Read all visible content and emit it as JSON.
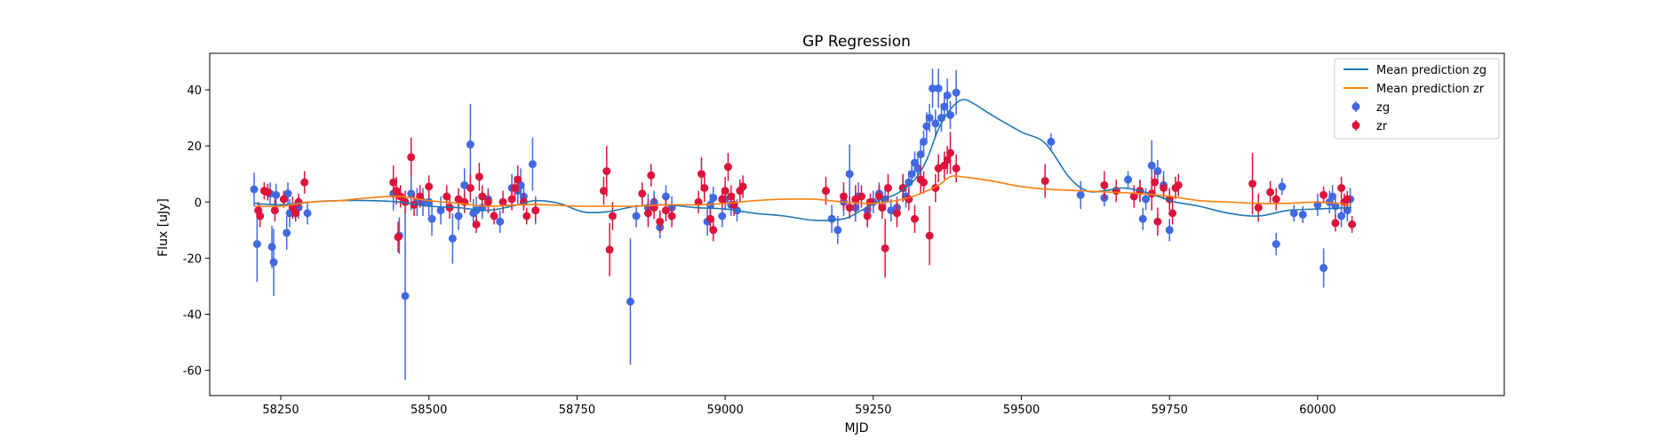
{
  "chart_data": {
    "type": "scatter",
    "title": "GP Regression",
    "xlabel": "MJD",
    "ylabel": "Flux [uJy]",
    "xlim": [
      58130,
      60315
    ],
    "ylim": [
      -69,
      53
    ],
    "x_ticks": [
      58250,
      58500,
      58750,
      59000,
      59250,
      59500,
      59750,
      60000
    ],
    "y_ticks": [
      -60,
      -40,
      -20,
      0,
      20,
      40
    ],
    "grid": false,
    "legend_position": "top-right",
    "colors": {
      "zg_line": "#1f77b4",
      "zr_line": "#ff7f0e",
      "zg_points": "#4169e1",
      "zr_points": "#dc143c"
    },
    "series": [
      {
        "name": "Mean prediction zg",
        "kind": "line",
        "color": "#1f77b4",
        "x": [
          58205,
          58250,
          58300,
          58350,
          58400,
          58450,
          58500,
          58550,
          58600,
          58650,
          58680,
          58720,
          58760,
          58800,
          58850,
          58900,
          58950,
          59000,
          59050,
          59100,
          59150,
          59200,
          59230,
          59260,
          59290,
          59320,
          59340,
          59360,
          59380,
          59400,
          59420,
          59450,
          59500,
          59540,
          59580,
          59610,
          59640,
          59670,
          59700,
          59730,
          59760,
          59800,
          59850,
          59900,
          59950,
          60000,
          60057
        ],
        "values": [
          -0.5,
          -1,
          0,
          0.5,
          0.5,
          0,
          -1.5,
          -2,
          -3,
          -1,
          0.5,
          -0.5,
          -3.5,
          -3.5,
          -1.5,
          -1,
          -2,
          -2.5,
          -4,
          -5,
          -6.5,
          -6,
          -3,
          0.5,
          3,
          8,
          15,
          26,
          33,
          36.5,
          35,
          31,
          25,
          21,
          9,
          4,
          4,
          5,
          4,
          2,
          0,
          -1.5,
          -4,
          -5,
          -3,
          -2.5,
          -2
        ]
      },
      {
        "name": "Mean prediction zr",
        "kind": "line",
        "color": "#ff7f0e",
        "x": [
          58205,
          58250,
          58300,
          58350,
          58400,
          58450,
          58500,
          58550,
          58600,
          58650,
          58700,
          58750,
          58800,
          58850,
          58900,
          58950,
          59000,
          59050,
          59100,
          59150,
          59200,
          59250,
          59300,
          59330,
          59360,
          59380,
          59400,
          59450,
          59500,
          59550,
          59600,
          59650,
          59700,
          59750,
          59800,
          59850,
          59900,
          59950,
          60000,
          60057
        ],
        "values": [
          -1.5,
          -1.5,
          0,
          0.5,
          1.5,
          2,
          0.5,
          -0.5,
          -1.5,
          -1,
          -1,
          -1.5,
          -1.5,
          -1.5,
          -1,
          -1,
          -0.5,
          0.5,
          1,
          1,
          0,
          -0.5,
          1,
          3,
          6,
          9,
          9,
          7.5,
          5.5,
          4.5,
          4,
          3.5,
          3,
          2,
          0.5,
          0,
          -0.5,
          -0.5,
          0,
          -1
        ]
      },
      {
        "name": "zg",
        "kind": "errorbar",
        "color": "#4169e1",
        "x": [
          58205,
          58210,
          58232,
          58235,
          58238,
          58242,
          58260,
          58262,
          58265,
          58280,
          58295,
          58440,
          58450,
          58460,
          58470,
          58480,
          58490,
          58500,
          58505,
          58520,
          58540,
          58550,
          58560,
          58570,
          58575,
          58580,
          58590,
          58600,
          58620,
          58640,
          58650,
          58655,
          58660,
          58675,
          58680,
          58840,
          58850,
          58870,
          58880,
          58890,
          58900,
          58910,
          58970,
          58975,
          58980,
          58995,
          59000,
          59010,
          59020,
          59180,
          59190,
          59200,
          59210,
          59220,
          59225,
          59240,
          59250,
          59260,
          59270,
          59280,
          59290,
          59300,
          59305,
          59310,
          59315,
          59320,
          59325,
          59330,
          59335,
          59340,
          59345,
          59350,
          59355,
          59360,
          59365,
          59370,
          59375,
          59380,
          59390,
          59550,
          59600,
          59640,
          59680,
          59700,
          59705,
          59710,
          59720,
          59730,
          59740,
          59750,
          59930,
          59940,
          59960,
          59975,
          60000,
          60010,
          60020,
          60025,
          60030,
          60040,
          60050,
          60055
        ],
        "values": [
          4.5,
          -15,
          3,
          -16,
          -21.5,
          2.5,
          -11,
          3,
          -4,
          -2,
          -4,
          3,
          -12,
          -33.5,
          3,
          0,
          0,
          0,
          -6,
          -3,
          -13,
          -5,
          6,
          20.5,
          -4,
          -3,
          -2,
          1,
          -7,
          5,
          4,
          6,
          2,
          13.5,
          -3,
          -35.5,
          -5,
          -2,
          0,
          -9,
          2,
          -2,
          -7,
          -1,
          1.5,
          -5,
          1,
          -1,
          -3,
          -6,
          -10,
          0,
          10,
          -2,
          2,
          -3,
          0,
          3,
          1,
          -3,
          -2,
          5,
          2,
          7,
          10,
          14,
          12,
          17,
          21.5,
          27,
          30,
          40.5,
          28,
          40.5,
          30,
          34,
          38,
          31,
          39,
          21.5,
          2.5,
          1.5,
          8,
          4,
          -6,
          1,
          13,
          11,
          6,
          -10,
          -15,
          5.5,
          -4,
          -4.5,
          -1,
          -23.5,
          0,
          2,
          -1.5,
          -5,
          -3,
          1
        ],
        "errors": [
          6,
          13.5,
          4,
          7.5,
          12,
          4,
          6,
          4,
          5,
          4,
          4,
          6,
          6.5,
          30,
          6,
          5,
          5,
          5,
          6,
          5,
          9,
          5,
          6,
          14.5,
          5,
          5,
          4,
          4,
          4,
          5,
          5,
          6,
          4,
          9.5,
          5,
          22.5,
          4,
          5,
          4,
          4,
          4,
          4,
          5,
          4,
          4,
          4,
          4,
          4,
          4,
          5,
          5,
          5,
          10.5,
          5,
          5,
          4,
          4,
          4,
          4,
          4,
          4,
          4,
          4,
          4,
          4,
          4,
          4,
          4,
          4,
          5,
          5,
          7,
          5,
          7,
          5,
          5,
          6,
          5,
          8,
          3,
          5,
          3,
          3,
          4,
          4,
          4,
          9,
          4,
          5,
          4,
          4,
          3,
          3,
          3,
          4,
          7,
          4,
          4,
          4,
          4,
          4,
          4
        ]
      },
      {
        "name": "zr",
        "kind": "errorbar",
        "color": "#dc143c",
        "x": [
          58212,
          58215,
          58222,
          58228,
          58240,
          58255,
          58270,
          58275,
          58280,
          58290,
          58440,
          58445,
          58448,
          58452,
          58460,
          58470,
          58475,
          58485,
          58500,
          58530,
          58535,
          58550,
          58560,
          58570,
          58580,
          58585,
          58590,
          58600,
          58610,
          58625,
          58640,
          58645,
          58650,
          58660,
          58665,
          58680,
          58795,
          58800,
          58805,
          58810,
          58860,
          58870,
          58875,
          58880,
          58890,
          58900,
          58910,
          58955,
          58960,
          58965,
          58975,
          58980,
          58995,
          59000,
          59005,
          59010,
          59015,
          59025,
          59030,
          59170,
          59200,
          59210,
          59220,
          59230,
          59240,
          59245,
          59260,
          59265,
          59270,
          59275,
          59290,
          59300,
          59310,
          59320,
          59330,
          59335,
          59345,
          59355,
          59360,
          59370,
          59375,
          59380,
          59390,
          59540,
          59640,
          59660,
          59690,
          59700,
          59720,
          59725,
          59730,
          59740,
          59750,
          59755,
          59760,
          59765,
          59890,
          59900,
          59920,
          59930,
          60010,
          60030,
          60040,
          60045,
          60050,
          60058
        ],
        "values": [
          -3,
          -5,
          4,
          3.5,
          -3,
          1,
          -2,
          -4,
          0,
          7,
          7,
          4,
          -12.5,
          2,
          0,
          16,
          -1,
          2,
          5.5,
          2,
          -2,
          1,
          0,
          5,
          -8,
          9,
          2,
          0,
          -5,
          0,
          1,
          5,
          8,
          0,
          -5,
          -3,
          4,
          11,
          -17,
          -5,
          3,
          -4,
          9.5,
          -2,
          -7,
          -3,
          -5,
          0,
          10,
          5,
          -6,
          -10,
          1,
          4,
          12.5,
          2,
          -1,
          4,
          5.5,
          4,
          2,
          -2,
          1,
          2,
          -5,
          0,
          2,
          -2,
          -16.5,
          5,
          -4,
          5,
          1,
          -6,
          8,
          7,
          -12,
          5,
          12,
          13,
          15,
          17.5,
          12,
          7.5,
          6,
          4,
          2,
          4,
          3,
          7,
          -7,
          5,
          1,
          -4,
          5,
          6,
          6.5,
          -2,
          3.5,
          1,
          2.5,
          -7.5,
          5,
          0,
          1,
          -8
        ],
        "errors": [
          3,
          4,
          3,
          3,
          4,
          3,
          4,
          3,
          3,
          4,
          6,
          5,
          5.5,
          4,
          4,
          7,
          4,
          4,
          4,
          4,
          4,
          4,
          4,
          5,
          3,
          5,
          4,
          4,
          3,
          4,
          4,
          4,
          5,
          3,
          3,
          4,
          5,
          9,
          9.5,
          5,
          4,
          5,
          4,
          4,
          4,
          4,
          4,
          4,
          6,
          5,
          4,
          4,
          4,
          5,
          5,
          4,
          4,
          4,
          4,
          5,
          5,
          4,
          5,
          4,
          4,
          3,
          4,
          4,
          10.5,
          5,
          5,
          5,
          4,
          5,
          5,
          4,
          10.5,
          5,
          5,
          5,
          5,
          7.5,
          5,
          6,
          5,
          4,
          4,
          4,
          6,
          4,
          5,
          4,
          4,
          4,
          4,
          4,
          11,
          5,
          4,
          4,
          3,
          3,
          4,
          3,
          3,
          3
        ]
      }
    ]
  }
}
